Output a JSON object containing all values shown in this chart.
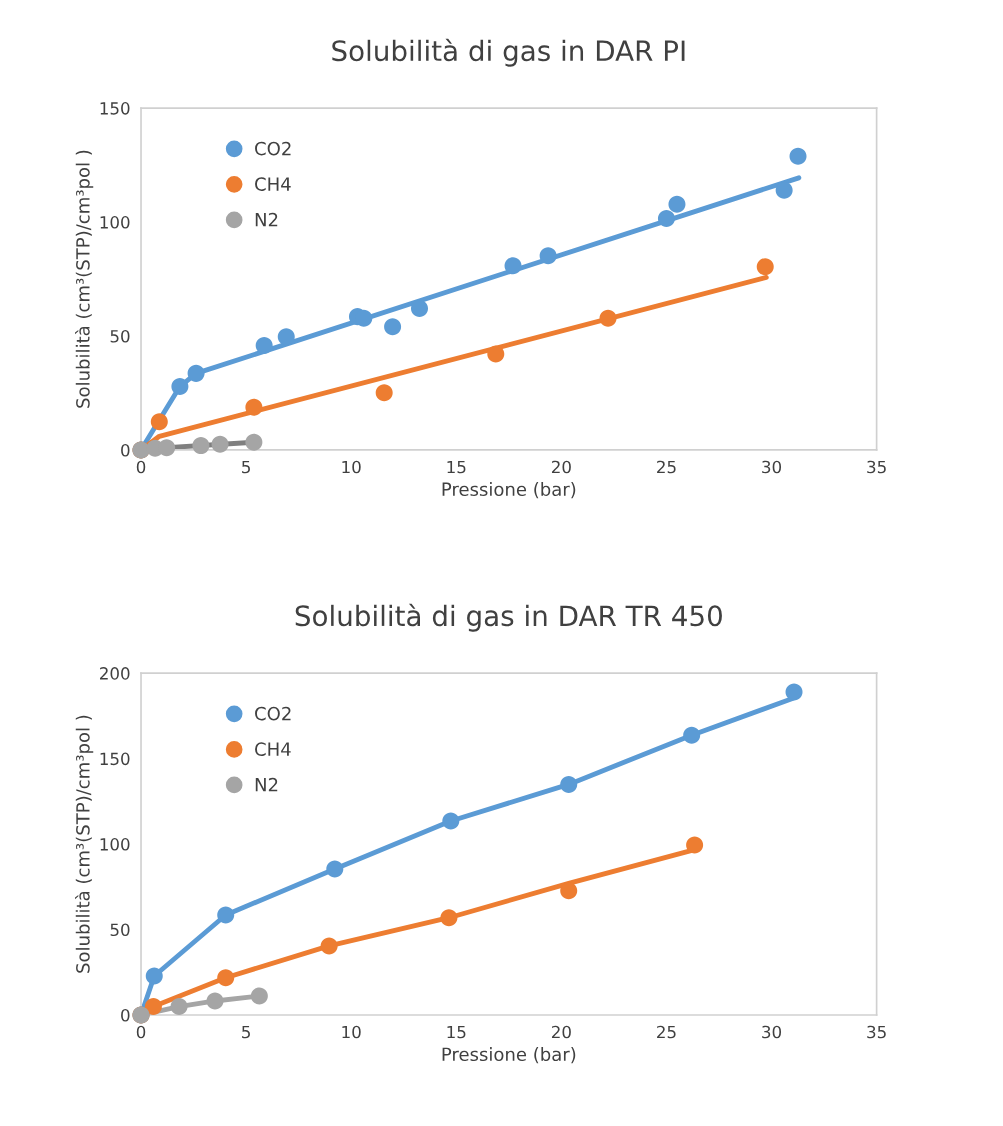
{
  "chart_data": [
    {
      "type": "scatter",
      "title": "Solubilità di gas in DAR PI",
      "xlabel": "Pressione (bar)",
      "ylabel": "Solubilità (cm³(STP)/cm³pol )",
      "xlim": [
        0,
        35
      ],
      "xticks": [
        0,
        5,
        10,
        15,
        20,
        25,
        30,
        35
      ],
      "ylim": [
        0,
        150
      ],
      "yticks": [
        0,
        50,
        100,
        150
      ],
      "grid": false,
      "legend": "top left",
      "series": [
        {
          "name": "CO2",
          "marker": "circle",
          "color": "#5b9bd5",
          "x": [
            0,
            1.85,
            2.62,
            5.86,
            6.91,
            10.3,
            10.6,
            11.97,
            13.25,
            17.7,
            19.37,
            25.0,
            25.5,
            30.6,
            31.26
          ],
          "values": [
            0,
            27.8,
            33.6,
            45.8,
            49.7,
            58.5,
            57.8,
            54.1,
            62.1,
            80.8,
            85.2,
            101.6,
            107.8,
            114,
            128.9
          ]
        },
        {
          "name": "CH4",
          "marker": "circle",
          "color": "#ed7d31",
          "x": [
            0,
            0.87,
            5.37,
            11.57,
            16.88,
            22.22,
            29.7
          ],
          "values": [
            0,
            12.4,
            18.7,
            25.1,
            42.1,
            57.8,
            80.4
          ]
        },
        {
          "name": "N2",
          "marker": "circle",
          "color": "#a5a5a5",
          "x": [
            0,
            0.67,
            1.22,
            2.85,
            3.76,
            5.37
          ],
          "values": [
            0,
            0.7,
            1.0,
            1.9,
            2.5,
            3.4
          ]
        },
        {
          "type": "line",
          "marker": "none",
          "color": "#5b9bd5",
          "x": [
            0,
            1.85,
            2.62,
            31.3
          ],
          "values": [
            0,
            27.8,
            33.6,
            119.4
          ]
        },
        {
          "type": "line",
          "marker": "none",
          "color": "#ed7d31",
          "x": [
            0,
            0.87,
            29.75
          ],
          "values": [
            0,
            6.0,
            75.7
          ]
        },
        {
          "type": "line",
          "marker": "none",
          "color": "#7f7f7f",
          "x": [
            0,
            1.22,
            5.37
          ],
          "values": [
            0,
            1.0,
            3.4
          ]
        }
      ]
    },
    {
      "type": "scatter",
      "title": "Solubilità di gas in DAR TR 450",
      "xlabel": "Pressione (bar)",
      "ylabel": "Solubilità (cm³(STP)/cm³pol )",
      "xlim": [
        0,
        35
      ],
      "xticks": [
        0,
        5,
        10,
        15,
        20,
        25,
        30,
        35
      ],
      "ylim": [
        0,
        200
      ],
      "yticks": [
        0,
        50,
        100,
        150,
        200
      ],
      "grid": false,
      "legend": "top left",
      "series": [
        {
          "name": "CO2",
          "marker": "circle",
          "color": "#5b9bd5",
          "x": [
            0,
            0.63,
            4.03,
            9.22,
            14.74,
            20.35,
            26.2,
            31.07
          ],
          "values": [
            0,
            22.8,
            58.5,
            85.4,
            113.5,
            134.9,
            163.7,
            188.9
          ]
        },
        {
          "name": "CH4",
          "marker": "circle",
          "color": "#ed7d31",
          "x": [
            0,
            0.59,
            4.03,
            8.95,
            14.65,
            20.35,
            26.34
          ],
          "values": [
            0,
            4.9,
            21.8,
            40.4,
            56.9,
            72.7,
            99.4
          ]
        },
        {
          "name": "N2",
          "marker": "circle",
          "color": "#a5a5a5",
          "x": [
            0,
            1.81,
            3.52,
            5.63
          ],
          "values": [
            0,
            4.9,
            8.2,
            11.1
          ]
        },
        {
          "type": "line",
          "marker": "none",
          "color": "#5b9bd5",
          "x": [
            0,
            0.63,
            4.03,
            9.22,
            14.74,
            20.35,
            26.2,
            31.0
          ],
          "values": [
            0,
            22.8,
            58.5,
            85.4,
            113.5,
            134.9,
            163.7,
            185.2
          ]
        },
        {
          "type": "line",
          "marker": "none",
          "color": "#ed7d31",
          "x": [
            0,
            0.59,
            4.03,
            8.95,
            14.65,
            20.35,
            26.26
          ],
          "values": [
            0,
            4.9,
            21.8,
            40.4,
            56.9,
            77,
            96.5
          ]
        },
        {
          "type": "line",
          "marker": "none",
          "color": "#a5a5a5",
          "x": [
            0,
            1.81,
            3.52,
            5.63
          ],
          "values": [
            0,
            4.9,
            8.2,
            11.1
          ]
        }
      ]
    }
  ]
}
